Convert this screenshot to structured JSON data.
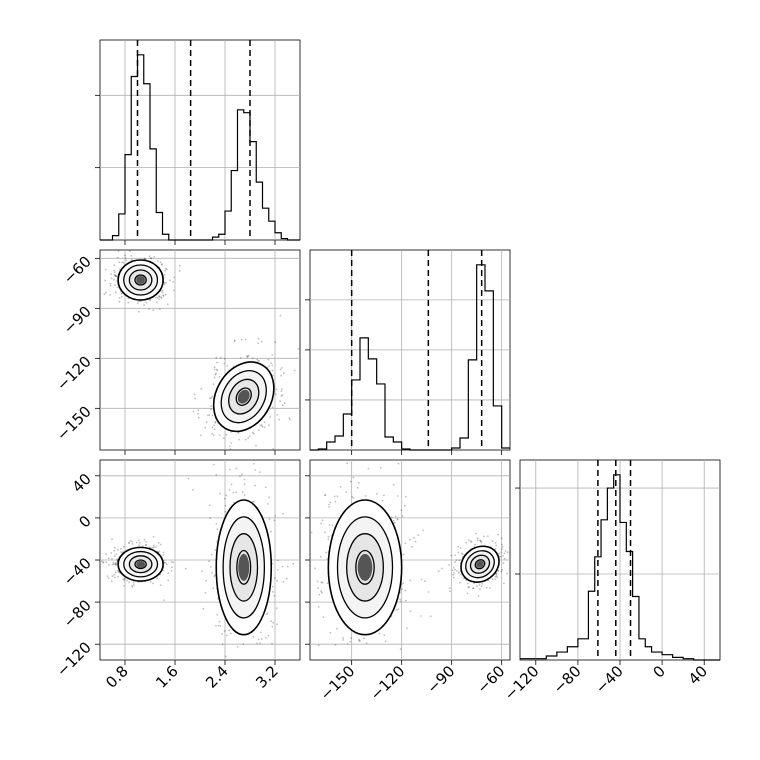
{
  "chart_data": {
    "type": "corner",
    "grid": true,
    "marginals": [
      {
        "param": "p0",
        "type": "histogram",
        "xlim": [
          0.4,
          3.6
        ],
        "x_ticks": [
          0.8,
          1.6,
          2.4,
          3.2
        ],
        "x_tick_labels": [
          "0.8",
          "1.6",
          "2.4",
          "3.2"
        ],
        "quantile_lines": [
          1.0,
          1.85,
          2.8
        ],
        "bin_edges": [
          0.4,
          0.6,
          0.7,
          0.8,
          0.9,
          1.0,
          1.1,
          1.2,
          1.3,
          1.4,
          1.5,
          1.6,
          1.7,
          1.8,
          1.9,
          2.0,
          2.1,
          2.2,
          2.3,
          2.4,
          2.5,
          2.6,
          2.7,
          2.8,
          2.9,
          3.0,
          3.1,
          3.2,
          3.3,
          3.4,
          3.5,
          3.6
        ],
        "counts": [
          0,
          3,
          18,
          59,
          113,
          128,
          108,
          63,
          19,
          4,
          0,
          0,
          0,
          0,
          0,
          0,
          0,
          2,
          4,
          20,
          48,
          90,
          88,
          68,
          40,
          22,
          13,
          5,
          1,
          0,
          0
        ]
      },
      {
        "param": "p1",
        "type": "histogram",
        "xlim": [
          -175,
          -55
        ],
        "x_ticks": [
          -150,
          -120,
          -90,
          -60
        ],
        "x_tick_labels": [
          "−150",
          "−120",
          "−90",
          "−60"
        ],
        "quantile_lines": [
          -150,
          -104,
          -72
        ],
        "bin_edges": [
          -175,
          -170,
          -165,
          -160,
          -155,
          -150,
          -145,
          -140,
          -135,
          -130,
          -125,
          -120,
          -115,
          -110,
          -105,
          -100,
          -95,
          -90,
          -85,
          -80,
          -75,
          -70,
          -65,
          -60,
          -55
        ],
        "counts": [
          0,
          1,
          8,
          14,
          36,
          70,
          112,
          91,
          66,
          13,
          8,
          1,
          0,
          0,
          0,
          0,
          0,
          2,
          12,
          90,
          185,
          159,
          44,
          2
        ]
      },
      {
        "param": "p2",
        "type": "histogram",
        "xlim": [
          -135,
          55
        ],
        "x_ticks": [
          -120,
          -80,
          -40,
          0,
          40
        ],
        "x_tick_labels": [
          "−120",
          "−80",
          "−40",
          "0",
          "40"
        ],
        "quantile_lines": [
          -61,
          -44,
          -30
        ],
        "bin_edges": [
          -135,
          -120,
          -110,
          -100,
          -90,
          -80,
          -70,
          -64,
          -58,
          -52,
          -46,
          -40,
          -34,
          -28,
          -22,
          -16,
          -10,
          0,
          10,
          20,
          30,
          40,
          55
        ],
        "counts": [
          1,
          1,
          3,
          6,
          10,
          16,
          52,
          78,
          106,
          130,
          140,
          104,
          82,
          48,
          16,
          10,
          6,
          4,
          2,
          1,
          0,
          0
        ]
      }
    ],
    "pairs": [
      {
        "x_param": "p0",
        "y_param": "p1",
        "ylim": [
          -175,
          -55
        ],
        "y_ticks": [
          -150,
          -120,
          -90,
          -60
        ],
        "y_tick_labels": [
          "−150",
          "−120",
          "−90",
          "−60"
        ],
        "modes": [
          {
            "mean": [
              1.05,
              -73
            ],
            "sd": [
              0.18,
              6.0
            ]
          },
          {
            "mean": [
              2.7,
              -143
            ],
            "sd": [
              0.22,
              11.0
            ]
          }
        ]
      },
      {
        "x_param": "p0",
        "y_param": "p2",
        "ylim": [
          -135,
          55
        ],
        "y_ticks": [
          -120,
          -80,
          -40,
          0,
          40
        ],
        "y_tick_labels": [
          "−120",
          "−80",
          "−40",
          "0",
          "40"
        ],
        "modes": [
          {
            "mean": [
              1.05,
              -44
            ],
            "sd": [
              0.18,
              8.0
            ]
          },
          {
            "mean": [
              2.7,
              -47
            ],
            "sd": [
              0.22,
              32.0
            ]
          }
        ]
      },
      {
        "x_param": "p1",
        "y_param": "p2",
        "ylim": [
          -135,
          55
        ],
        "y_ticks": [
          -120,
          -80,
          -40,
          0,
          40
        ],
        "y_tick_labels": [
          "−120",
          "−80",
          "−40",
          "0",
          "40"
        ],
        "modes": [
          {
            "mean": [
              -142,
              -47
            ],
            "sd": [
              11.0,
              32.0
            ]
          },
          {
            "mean": [
              -73,
              -44
            ],
            "sd": [
              6.0,
              8.0
            ]
          }
        ]
      }
    ]
  }
}
